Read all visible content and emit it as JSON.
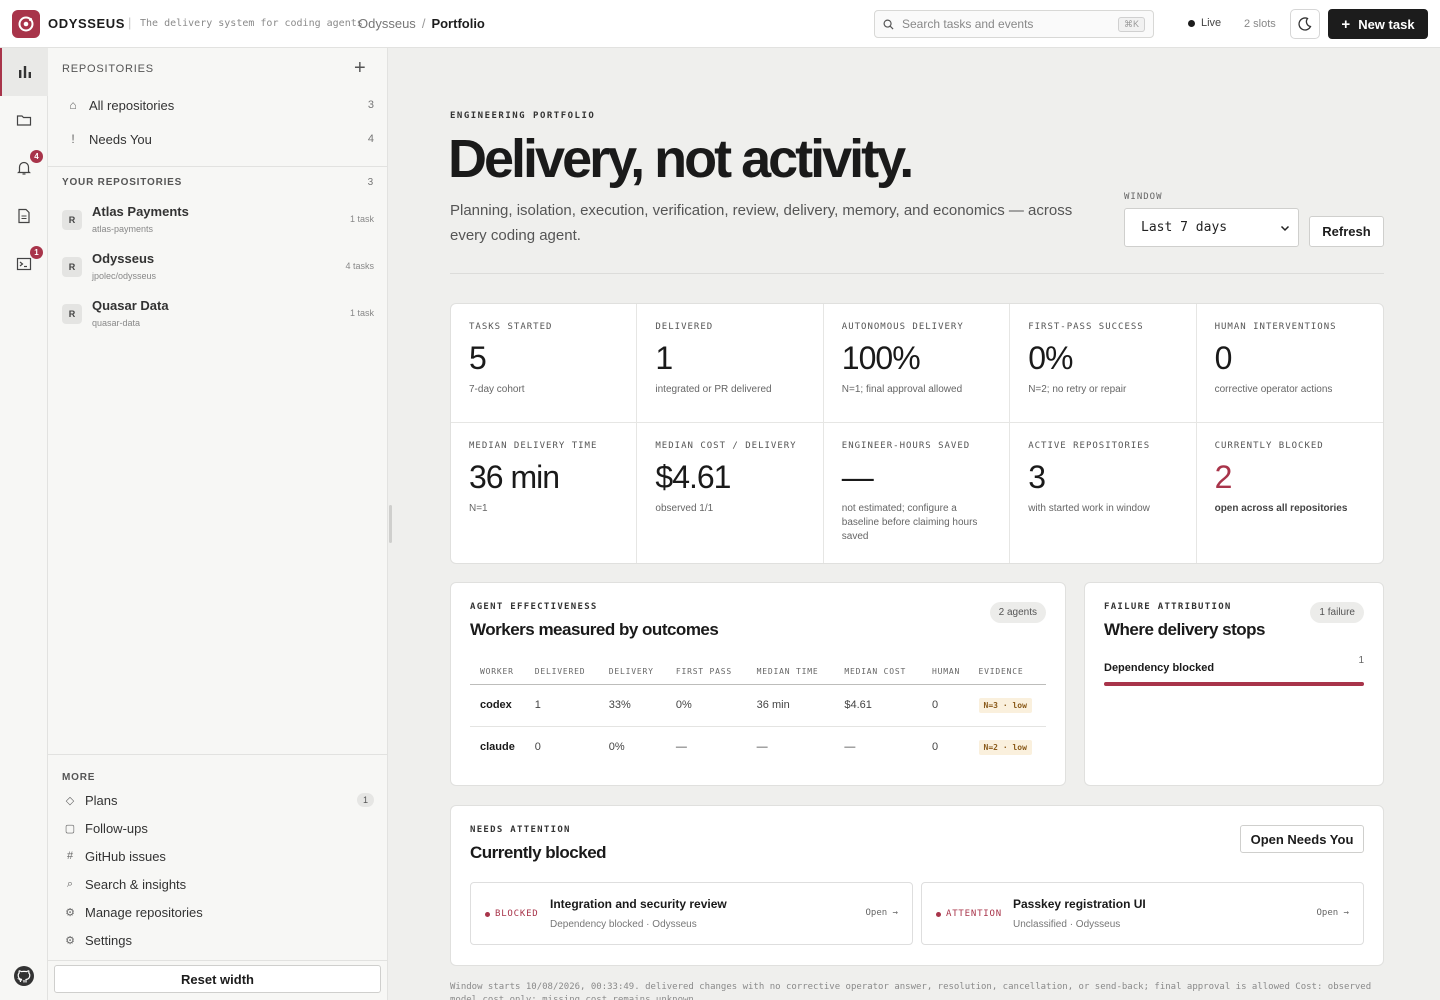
{
  "topbar": {
    "brand": "ODYSSEUS",
    "tagline": "The delivery system for coding agents",
    "breadcrumb": [
      "Odysseus",
      "Portfolio"
    ],
    "search_placeholder": "Search tasks and events",
    "search_shortcut": "⌘K",
    "live_label": "Live",
    "slots_label": "2 slots",
    "new_task_label": "New task"
  },
  "rail": {
    "items": [
      {
        "icon": "chart-icon",
        "active": true
      },
      {
        "icon": "folder-icon"
      },
      {
        "icon": "bell-icon",
        "badge": "4"
      },
      {
        "icon": "document-icon"
      },
      {
        "icon": "terminal-icon",
        "badge": "1"
      }
    ],
    "footer_icon": "github-icon"
  },
  "sidebar": {
    "header": "REPOSITORIES",
    "nav": [
      {
        "icon": "home-icon",
        "label": "All repositories",
        "count": "3"
      },
      {
        "icon": "alert-icon",
        "label": "Needs You",
        "count": "4"
      }
    ],
    "your_repos_header": "YOUR REPOSITORIES",
    "your_repos_count": "3",
    "repos": [
      {
        "avatar": "R",
        "name": "Atlas Payments",
        "slug": "atlas-payments",
        "tasks": "1 task"
      },
      {
        "avatar": "R",
        "name": "Odysseus",
        "slug": "jpolec/odysseus",
        "tasks": "4 tasks"
      },
      {
        "avatar": "R",
        "name": "Quasar Data",
        "slug": "quasar-data",
        "tasks": "1 task"
      }
    ],
    "more_header": "MORE",
    "more": [
      {
        "icon": "diamond-icon",
        "label": "Plans",
        "badge": "1"
      },
      {
        "icon": "square-icon",
        "label": "Follow-ups"
      },
      {
        "icon": "hash-icon",
        "label": "GitHub issues"
      },
      {
        "icon": "search-icon",
        "label": "Search & insights"
      },
      {
        "icon": "gear-icon",
        "label": "Manage repositories"
      },
      {
        "icon": "gear-icon",
        "label": "Settings"
      }
    ],
    "reset_label": "Reset width"
  },
  "main": {
    "eyebrow": "ENGINEERING PORTFOLIO",
    "title": "Delivery, not activity.",
    "subtitle": "Planning, isolation, execution, verification, review, delivery, memory, and economics — across every coding agent.",
    "window_label": "WINDOW",
    "window_value": "Last 7 days",
    "refresh_label": "Refresh"
  },
  "metrics": [
    {
      "label": "TASKS STARTED",
      "value": "5",
      "note": "7-day cohort"
    },
    {
      "label": "DELIVERED",
      "value": "1",
      "note": "integrated or PR delivered"
    },
    {
      "label": "AUTONOMOUS DELIVERY",
      "value": "100%",
      "note": "N=1; final approval allowed"
    },
    {
      "label": "FIRST-PASS SUCCESS",
      "value": "0%",
      "note": "N=2; no retry or repair"
    },
    {
      "label": "HUMAN INTERVENTIONS",
      "value": "0",
      "note": "corrective operator actions"
    },
    {
      "label": "MEDIAN DELIVERY TIME",
      "value": "36 min",
      "note": "N=1"
    },
    {
      "label": "MEDIAN COST / DELIVERY",
      "value": "$4.61",
      "note": "observed 1/1"
    },
    {
      "label": "ENGINEER-HOURS SAVED",
      "value": "—",
      "note": "not estimated; configure a baseline before claiming hours saved"
    },
    {
      "label": "ACTIVE REPOSITORIES",
      "value": "3",
      "note": "with started work in window"
    },
    {
      "label": "CURRENTLY BLOCKED",
      "value": "2",
      "note": "open across all repositories",
      "accent": "#a8344a"
    }
  ],
  "agents": {
    "eyebrow": "AGENT EFFECTIVENESS",
    "title": "Workers measured by outcomes",
    "pill": "2 agents",
    "columns": [
      "WORKER",
      "DELIVERED",
      "DELIVERY",
      "FIRST PASS",
      "MEDIAN TIME",
      "MEDIAN COST",
      "HUMAN",
      "EVIDENCE"
    ],
    "rows": [
      [
        "codex",
        "1",
        "33%",
        "0%",
        "36 min",
        "$4.61",
        "0",
        "N=3 · low"
      ],
      [
        "claude",
        "0",
        "0%",
        "—",
        "—",
        "—",
        "0",
        "N=2 · low"
      ]
    ]
  },
  "failures": {
    "eyebrow": "FAILURE ATTRIBUTION",
    "title": "Where delivery stops",
    "pill": "1 failure",
    "items": [
      {
        "label": "Dependency blocked",
        "count": "1",
        "fraction": 1.0
      }
    ]
  },
  "attention": {
    "eyebrow": "NEEDS ATTENTION",
    "title": "Currently blocked",
    "button": "Open Needs You",
    "items": [
      {
        "status": "BLOCKED",
        "title": "Integration and security review",
        "sub": "Dependency blocked · Odysseus",
        "open": "Open →"
      },
      {
        "status": "ATTENTION",
        "title": "Passkey registration UI",
        "sub": "Unclassified · Odysseus",
        "open": "Open →"
      }
    ]
  },
  "footer": "Window starts 10/08/2026, 00:33:49. delivered changes with no corrective operator answer, resolution, cancellation, or send-back; final approval is allowed Cost: observed model cost only; missing cost remains unknown.",
  "colors": {
    "accent": "#a8344a",
    "dark": "#1c1c1c",
    "bg": "#efefed"
  }
}
